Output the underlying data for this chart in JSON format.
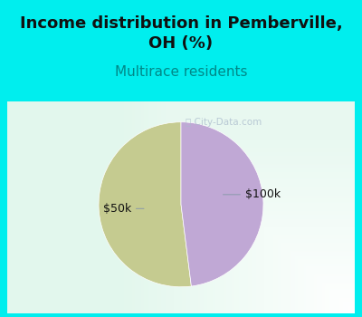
{
  "title": "Income distribution in Pemberville,\nOH (%)",
  "subtitle": "Multirace residents",
  "title_color": "#111111",
  "subtitle_color": "#008888",
  "bg_color": "#00EEEE",
  "chart_bg_left": "#C8EDD8",
  "chart_bg_right": "#F0F8F0",
  "slices": [
    52,
    48
  ],
  "slice_colors": [
    "#C5CB90",
    "#C0A8D5"
  ],
  "labels": [
    "$50k",
    "$100k"
  ],
  "watermark": "City-Data.com",
  "title_fontsize": 13,
  "subtitle_fontsize": 11,
  "label_fontsize": 9
}
